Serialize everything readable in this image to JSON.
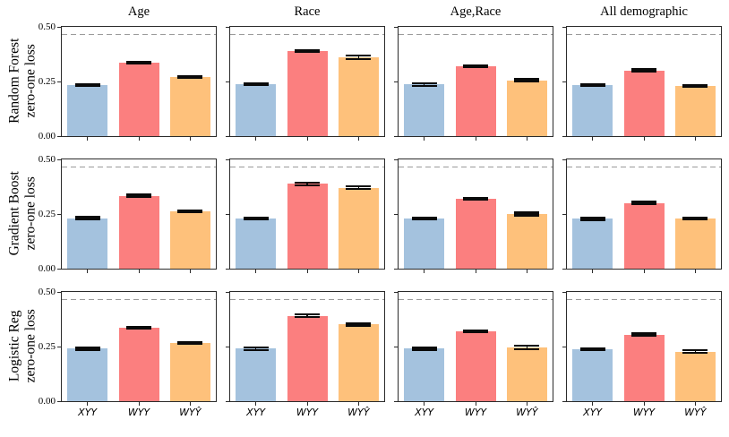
{
  "chart_data": {
    "type": "bar",
    "grid": {
      "rows": 3,
      "cols": 4
    },
    "col_titles": [
      "Age",
      "Race",
      "Age,Race",
      "All demographic"
    ],
    "row_labels": [
      [
        "Random Forest",
        "zero-one loss"
      ],
      [
        "Gradient Boost",
        "zero-one loss"
      ],
      [
        "Logistic Reg",
        "zero-one loss"
      ]
    ],
    "categories": [
      "XYY",
      "WYY",
      "WYŶ"
    ],
    "colors": [
      "#a4c2de",
      "#fb7f7f",
      "#fec17b"
    ],
    "dashed_color": "#9b9b9b",
    "ylim": [
      0,
      0.5
    ],
    "yticks": [
      0.5,
      0.25,
      0.0
    ],
    "ytick_labels": [
      "0.50",
      "0.25",
      "0.00"
    ],
    "dashed_baseline": 0.465,
    "cells": [
      {
        "row": "Random Forest",
        "col": "Age",
        "values": [
          0.235,
          0.335,
          0.271
        ],
        "errors": [
          0.004,
          0.004,
          0.004
        ]
      },
      {
        "row": "Random Forest",
        "col": "Race",
        "values": [
          0.237,
          0.39,
          0.36
        ],
        "errors": [
          0.005,
          0.005,
          0.008
        ]
      },
      {
        "row": "Random Forest",
        "col": "Age,Race",
        "values": [
          0.236,
          0.321,
          0.255
        ],
        "errors": [
          0.005,
          0.004,
          0.005
        ]
      },
      {
        "row": "Random Forest",
        "col": "All demographic",
        "values": [
          0.233,
          0.301,
          0.228
        ],
        "errors": [
          0.005,
          0.004,
          0.004
        ]
      },
      {
        "row": "Gradient Boost",
        "col": "Age",
        "values": [
          0.231,
          0.334,
          0.262
        ],
        "errors": [
          0.005,
          0.004,
          0.005
        ]
      },
      {
        "row": "Gradient Boost",
        "col": "Race",
        "values": [
          0.23,
          0.388,
          0.37
        ],
        "errors": [
          0.004,
          0.006,
          0.006
        ]
      },
      {
        "row": "Gradient Boost",
        "col": "Age,Race",
        "values": [
          0.23,
          0.32,
          0.25
        ],
        "errors": [
          0.005,
          0.004,
          0.006
        ]
      },
      {
        "row": "Gradient Boost",
        "col": "All demographic",
        "values": [
          0.228,
          0.301,
          0.229
        ],
        "errors": [
          0.005,
          0.004,
          0.004
        ]
      },
      {
        "row": "Logistic Reg",
        "col": "Age",
        "values": [
          0.24,
          0.336,
          0.265
        ],
        "errors": [
          0.004,
          0.004,
          0.004
        ]
      },
      {
        "row": "Logistic Reg",
        "col": "Race",
        "values": [
          0.24,
          0.391,
          0.352
        ],
        "errors": [
          0.005,
          0.005,
          0.006
        ]
      },
      {
        "row": "Logistic Reg",
        "col": "Age,Race",
        "values": [
          0.24,
          0.321,
          0.246
        ],
        "errors": [
          0.004,
          0.004,
          0.008
        ]
      },
      {
        "row": "Logistic Reg",
        "col": "All demographic",
        "values": [
          0.239,
          0.305,
          0.226
        ],
        "errors": [
          0.004,
          0.004,
          0.006
        ]
      }
    ]
  }
}
